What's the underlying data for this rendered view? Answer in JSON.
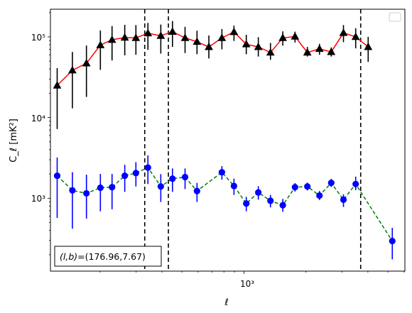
{
  "chart_data": {
    "type": "scatter",
    "title": "",
    "xlabel": "ℓ",
    "ylabel": "C_ℓ [mK²]",
    "xscale": "log",
    "yscale": "log",
    "xlim": [
      115,
      6050
    ],
    "ylim": [
      125,
      220000
    ],
    "x_tick_label": "10³",
    "y_tick_labels": [
      "10³",
      "10⁴",
      "10⁵"
    ],
    "grid": false,
    "legend": {
      "placement": "top-right",
      "entries": []
    },
    "vlines": [
      330,
      430,
      3690
    ],
    "annotation": "(l, b)=(176.96,7.67)",
    "annotation_math": "(l,b)",
    "annotation_value": "=(176.96,7.67)",
    "x": [
      124,
      147,
      172,
      201,
      229,
      264,
      299,
      342,
      395,
      450,
      518,
      592,
      676,
      782,
      895,
      1027,
      1175,
      1346,
      1545,
      1771,
      2033,
      2328,
      2655,
      3044,
      3490,
      4013,
      4587,
      5255
    ],
    "series": [
      {
        "color": "#ff0000",
        "line_style": "solid",
        "marker": "triangle",
        "marker_color": "#000000",
        "error_color": "#000000",
        "values": [
          25000,
          38500,
          47000,
          79000,
          92000,
          98000,
          97000,
          111000,
          103000,
          116000,
          97000,
          87000,
          75000,
          97000,
          115000,
          81000,
          75000,
          64000,
          97000,
          101000,
          64000,
          71000,
          65000,
          112000,
          100000,
          75000
        ],
        "x_index": [
          0,
          1,
          2,
          3,
          4,
          5,
          6,
          7,
          8,
          9,
          10,
          11,
          12,
          13,
          14,
          15,
          16,
          17,
          18,
          19,
          20,
          21,
          22,
          23,
          24,
          25
        ],
        "err_low": [
          7200,
          13000,
          18000,
          39000,
          51000,
          59000,
          60000,
          69000,
          62000,
          75000,
          63000,
          61000,
          54000,
          70000,
          89000,
          61000,
          57000,
          52000,
          78000,
          85000,
          57000,
          60000,
          57000,
          86000,
          72000,
          49000
        ],
        "err_high": [
          41000,
          65000,
          78000,
          120000,
          136000,
          141000,
          140000,
          149000,
          142000,
          157000,
          133000,
          119000,
          104000,
          125000,
          138000,
          106000,
          99000,
          84000,
          117000,
          116000,
          75000,
          82000,
          74000,
          140000,
          128000,
          100000
        ]
      },
      {
        "color": "#008000",
        "line_style": "dashed",
        "marker": "circle",
        "marker_color": "#0000ff",
        "error_color": "#0000ff",
        "values": [
          1900,
          1250,
          1150,
          1350,
          1370,
          1900,
          2050,
          2400,
          1400,
          1750,
          1830,
          1230,
          2100,
          1420,
          860,
          1180,
          930,
          820,
          1370,
          1400,
          1080,
          1550,
          960,
          1500,
          295
        ],
        "x_index": [
          0,
          1,
          2,
          3,
          4,
          5,
          6,
          7,
          8,
          9,
          10,
          11,
          13,
          14,
          15,
          16,
          17,
          18,
          19,
          20,
          21,
          22,
          23,
          24,
          27
        ],
        "err_low": [
          570,
          420,
          560,
          690,
          730,
          1200,
          1400,
          1500,
          900,
          1200,
          1300,
          900,
          1700,
          1100,
          690,
          960,
          770,
          680,
          1210,
          1250,
          950,
          1380,
          780,
          1260,
          175
        ],
        "err_high": [
          3200,
          2100,
          1960,
          2000,
          2000,
          2600,
          2800,
          3400,
          1990,
          2340,
          2340,
          1550,
          2500,
          1750,
          1040,
          1410,
          1100,
          980,
          1540,
          1560,
          1230,
          1740,
          1120,
          1850,
          430
        ]
      }
    ]
  }
}
